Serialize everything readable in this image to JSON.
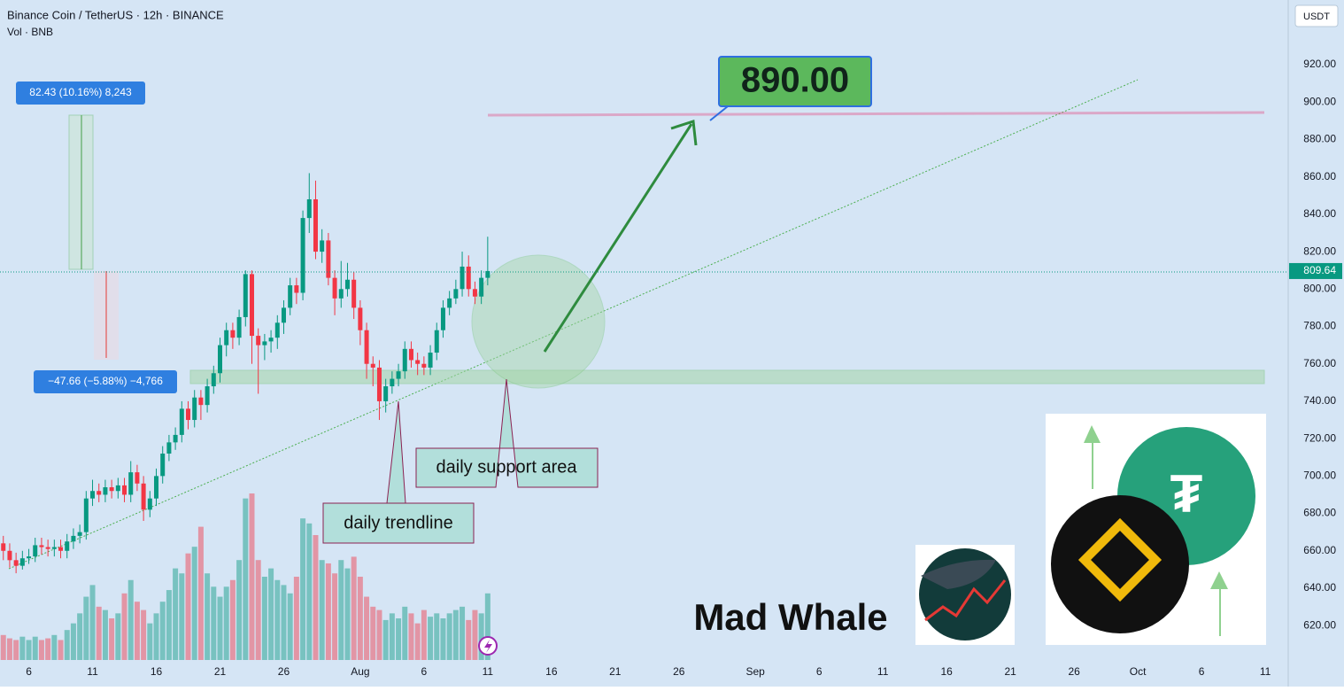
{
  "chart_data": {
    "type": "candlestick",
    "title": "Binance Coin / TetherUS · 12h · BINANCE",
    "subtitle": "Vol · BNB",
    "currency": "USDT",
    "up_color": "#089981",
    "down_color": "#f23645",
    "x": [
      4,
      4.5,
      5,
      5.5,
      6,
      6.5,
      7,
      7.5,
      8,
      8.5,
      9,
      9.5,
      10,
      10.5,
      11,
      11.5,
      12,
      12.5,
      13,
      13.5,
      14,
      14.5,
      15,
      15.5,
      16,
      16.5,
      17,
      17.5,
      18,
      18.5,
      19,
      19.5,
      20,
      20.5,
      21,
      21.5,
      22,
      22.5,
      23,
      23.5,
      24,
      24.5,
      25,
      25.5,
      26,
      26.5,
      27,
      27.5,
      28,
      28.5,
      29,
      29.5,
      30,
      30.5,
      31,
      31.5,
      32,
      32.5,
      33,
      33.5,
      34,
      34.5,
      35,
      35.5,
      36,
      36.5,
      37,
      37.5,
      38,
      38.5,
      39,
      39.5,
      40,
      40.5,
      41,
      41.5,
      42
    ],
    "open": [
      664,
      660,
      655,
      652,
      656,
      657,
      663,
      662,
      661,
      662,
      660,
      665,
      668,
      670,
      688,
      692,
      690,
      694,
      692,
      695,
      690,
      702,
      696,
      682,
      688,
      700,
      712,
      718,
      722,
      736,
      730,
      742,
      738,
      748,
      755,
      770,
      778,
      774,
      785,
      808,
      775,
      770,
      772,
      774,
      782,
      790,
      802,
      798,
      838,
      848,
      820,
      826,
      806,
      795,
      800,
      805,
      790,
      778,
      760,
      758,
      740,
      748,
      752,
      756,
      768,
      762,
      760,
      758,
      766,
      778,
      790,
      795,
      800,
      812,
      800,
      796,
      806
    ],
    "high": [
      668,
      664,
      659,
      660,
      661,
      667,
      667,
      666,
      666,
      666,
      669,
      672,
      674,
      692,
      698,
      696,
      698,
      698,
      699,
      699,
      708,
      706,
      700,
      692,
      704,
      716,
      722,
      726,
      740,
      740,
      746,
      746,
      752,
      759,
      774,
      782,
      782,
      789,
      810,
      810,
      779,
      776,
      778,
      786,
      794,
      806,
      806,
      842,
      862,
      858,
      832,
      830,
      810,
      815,
      814,
      809,
      794,
      782,
      764,
      762,
      752,
      756,
      760,
      772,
      772,
      766,
      764,
      770,
      782,
      794,
      799,
      805,
      820,
      818,
      804,
      810,
      828
    ],
    "low": [
      655,
      651,
      648,
      650,
      653,
      654,
      658,
      657,
      657,
      656,
      656,
      661,
      664,
      666,
      684,
      686,
      686,
      688,
      688,
      686,
      686,
      692,
      676,
      678,
      684,
      696,
      708,
      714,
      718,
      725,
      726,
      730,
      734,
      744,
      750,
      764,
      768,
      770,
      780,
      760,
      744,
      762,
      766,
      768,
      776,
      786,
      792,
      794,
      830,
      816,
      814,
      802,
      786,
      790,
      796,
      784,
      770,
      752,
      748,
      730,
      734,
      744,
      748,
      752,
      758,
      754,
      754,
      754,
      762,
      774,
      786,
      792,
      796,
      796,
      792,
      792,
      802
    ],
    "close": [
      660,
      655,
      652,
      656,
      657,
      663,
      662,
      661,
      662,
      660,
      665,
      668,
      670,
      688,
      692,
      690,
      694,
      692,
      695,
      690,
      702,
      696,
      682,
      688,
      700,
      712,
      718,
      722,
      736,
      730,
      742,
      738,
      748,
      755,
      770,
      778,
      774,
      785,
      808,
      775,
      770,
      772,
      774,
      782,
      790,
      802,
      798,
      838,
      848,
      820,
      826,
      806,
      795,
      800,
      805,
      790,
      778,
      760,
      758,
      740,
      748,
      752,
      756,
      768,
      762,
      760,
      758,
      766,
      778,
      790,
      795,
      800,
      812,
      800,
      796,
      806,
      809.64
    ],
    "volume": [
      15,
      13,
      12,
      14,
      12,
      14,
      12,
      13,
      15,
      12,
      18,
      22,
      28,
      38,
      45,
      32,
      30,
      25,
      28,
      40,
      48,
      35,
      30,
      22,
      28,
      35,
      42,
      55,
      52,
      64,
      68,
      80,
      52,
      44,
      38,
      44,
      48,
      60,
      97,
      100,
      60,
      50,
      55,
      48,
      45,
      40,
      50,
      85,
      82,
      75,
      60,
      58,
      52,
      60,
      55,
      62,
      50,
      38,
      32,
      30,
      24,
      28,
      25,
      32,
      28,
      22,
      30,
      26,
      28,
      25,
      28,
      30,
      32,
      24,
      30,
      28,
      40
    ],
    "xlim": [
      3.74,
      104.8
    ],
    "xticks": [
      6,
      11,
      16,
      21,
      26,
      {
        "value": 32,
        "label": "Aug"
      },
      {
        "value": 37,
        "label": "6"
      },
      {
        "value": 42,
        "label": "11"
      },
      {
        "value": 47,
        "label": "16"
      },
      {
        "value": 52,
        "label": "21"
      },
      {
        "value": 57,
        "label": "26"
      },
      {
        "value": 63,
        "label": "Sep"
      },
      {
        "value": 68,
        "label": "6"
      },
      {
        "value": 73,
        "label": "11"
      },
      {
        "value": 78,
        "label": "16"
      },
      {
        "value": 83,
        "label": "21"
      },
      {
        "value": 88,
        "label": "26"
      },
      {
        "value": 93,
        "label": "Oct"
      },
      {
        "value": 98,
        "label": "6"
      },
      {
        "value": 103,
        "label": "11"
      }
    ],
    "ylim": [
      587.4,
      954.6
    ],
    "yticks": [
      {
        "value": 620,
        "label": "620.00"
      },
      {
        "value": 640,
        "label": "640.00"
      },
      {
        "value": 660,
        "label": "660.00"
      },
      {
        "value": 680,
        "label": "680.00"
      },
      {
        "value": 700,
        "label": "700.00"
      },
      {
        "value": 720,
        "label": "720.00"
      },
      {
        "value": 740,
        "label": "740.00"
      },
      {
        "value": 760,
        "label": "760.00"
      },
      {
        "value": 780,
        "label": "780.00"
      },
      {
        "value": 800,
        "label": "800.00"
      },
      {
        "value": 820,
        "label": "820.00"
      },
      {
        "value": 840,
        "label": "840.00"
      },
      {
        "value": 860,
        "label": "860.00"
      },
      {
        "value": 880,
        "label": "880.00"
      },
      {
        "value": 900,
        "label": "900.00"
      },
      {
        "value": 920,
        "label": "920.00"
      }
    ],
    "grid": true,
    "annotations": [
      "82.43 (10.16%) 8,243",
      "−47.66 (−5.88%) −4,766",
      "890.00",
      "daily support area",
      "daily trendline"
    ],
    "watermark": "Mad Whale"
  }
}
